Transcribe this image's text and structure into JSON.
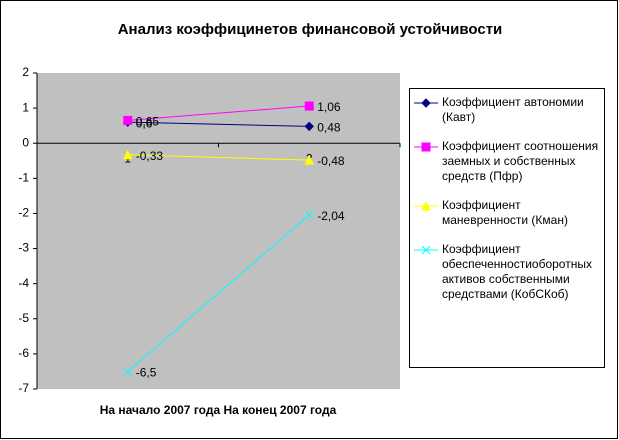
{
  "chart_data": {
    "type": "line",
    "title": "Анализ коэффицинетов финансовой устойчивости",
    "x_label": "На начало 2007 года На конец 2007 года",
    "categories": [
      "1",
      "2"
    ],
    "ylim": [
      -7,
      2
    ],
    "yticks": [
      -7,
      -6,
      -5,
      -4,
      -3,
      -2,
      -1,
      0,
      1,
      2
    ],
    "legend": "right",
    "series": [
      {
        "name": "Коэффициент автономии (Кавт)",
        "color": "#000080",
        "marker": "diamond",
        "values": [
          0.6,
          0.48
        ],
        "value_labels": [
          "0,6",
          "0,48"
        ]
      },
      {
        "name": "Коэффициент соотношения заемных и собственных средств (Пфр)",
        "color": "#ff00ff",
        "marker": "square",
        "values": [
          0.65,
          1.06
        ],
        "value_labels": [
          "0,65",
          "1,06"
        ]
      },
      {
        "name": "Коэффициент маневренности (Кман)",
        "color": "#ffff00",
        "marker": "triangle",
        "values": [
          -0.33,
          -0.48
        ],
        "value_labels": [
          "-0,33",
          "-0,48"
        ]
      },
      {
        "name": "Коэффициент обеспеченностиоборотных активов собственными средствами (КобСКоб)",
        "color": "#00ffff",
        "marker": "x",
        "values": [
          -6.5,
          -2.04
        ],
        "value_labels": [
          "-6,5",
          "-2,04"
        ]
      }
    ]
  }
}
